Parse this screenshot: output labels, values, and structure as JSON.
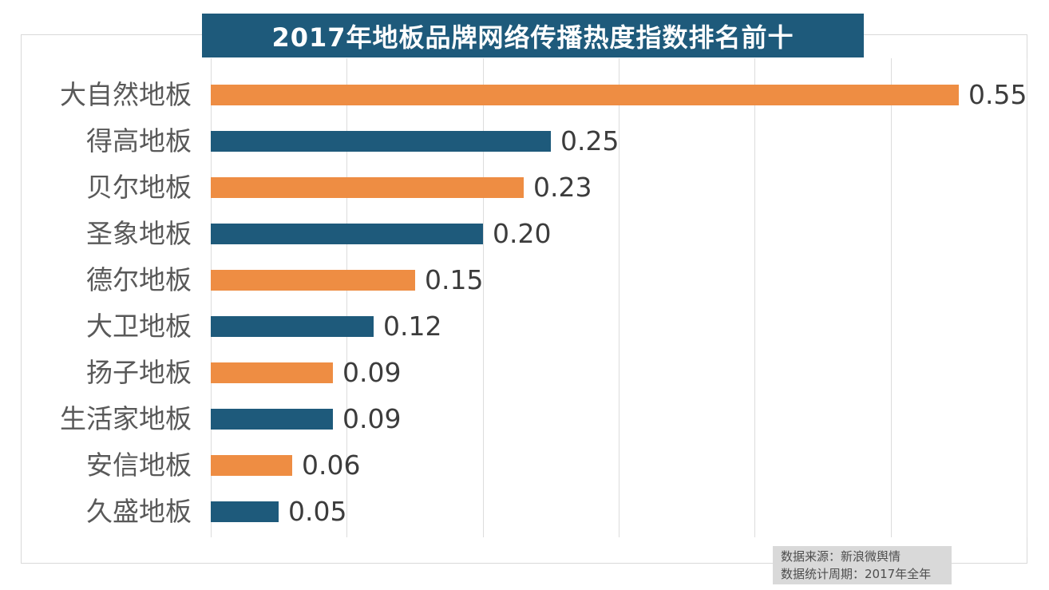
{
  "title": "2017年地板品牌网络传播热度指数排名前十",
  "source_note": {
    "line1": "数据来源：新浪微舆情",
    "line2": "数据统计周期：2017年全年"
  },
  "colors": {
    "banner_bg": "#1e5a7b",
    "bar_orange": "#ee8d43",
    "bar_teal": "#1e5a7b",
    "grid": "#dcdcdc",
    "frame_border": "#d9d9d9",
    "category_label": "#595959",
    "value_label": "#3c3c3c",
    "note_bg": "#d9d9d9",
    "note_text": "#4d4d4d"
  },
  "chart_data": {
    "type": "bar",
    "orientation": "horizontal",
    "title": "2017年地板品牌网络传播热度指数排名前十",
    "categories": [
      "大自然地板",
      "得高地板",
      "贝尔地板",
      "圣象地板",
      "德尔地板",
      "大卫地板",
      "扬子地板",
      "生活家地板",
      "安信地板",
      "久盛地板"
    ],
    "values": [
      0.55,
      0.25,
      0.23,
      0.2,
      0.15,
      0.12,
      0.09,
      0.09,
      0.06,
      0.05
    ],
    "value_labels": [
      "0.55",
      "0.25",
      "0.23",
      "0.20",
      "0.15",
      "0.12",
      "0.09",
      "0.09",
      "0.06",
      "0.05"
    ],
    "xlabel": "",
    "ylabel": "",
    "xlim": [
      0,
      0.6
    ],
    "gridline_interval": 0.1,
    "grid": true,
    "legend": false,
    "bar_color_pattern": [
      "#ee8d43",
      "#1e5a7b"
    ],
    "value_labels_shown": true
  }
}
